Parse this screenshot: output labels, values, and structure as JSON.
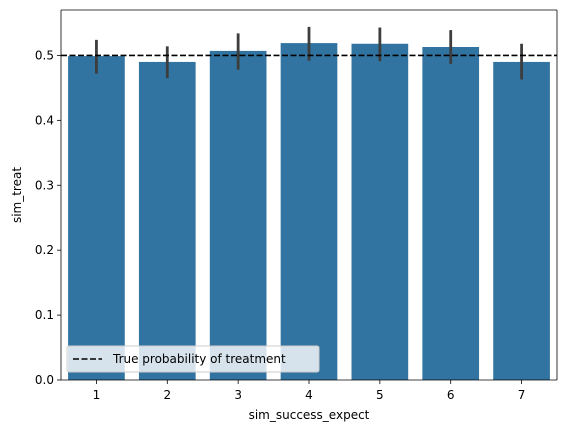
{
  "chart_data": {
    "type": "bar",
    "categories": [
      "1",
      "2",
      "3",
      "4",
      "5",
      "6",
      "7"
    ],
    "values": [
      0.499,
      0.49,
      0.507,
      0.519,
      0.518,
      0.513,
      0.49
    ],
    "error_bars": [
      [
        0.472,
        0.524
      ],
      [
        0.465,
        0.514
      ],
      [
        0.478,
        0.534
      ],
      [
        0.492,
        0.544
      ],
      [
        0.491,
        0.543
      ],
      [
        0.487,
        0.539
      ],
      [
        0.463,
        0.518
      ]
    ],
    "xlabel": "sim_success_expect",
    "ylabel": "sim_treat",
    "ylim": [
      0,
      0.57
    ],
    "yticks": [
      0.0,
      0.1,
      0.2,
      0.3,
      0.4,
      0.5
    ],
    "ytick_labels": [
      "0.0",
      "0.1",
      "0.2",
      "0.3",
      "0.4",
      "0.5"
    ],
    "reference_line": {
      "y": 0.5,
      "style": "dashed",
      "color": "#000000",
      "label": "True probability of treatment"
    },
    "legend": {
      "placement": "lower-left",
      "entries": [
        "True probability of treatment"
      ]
    },
    "bar_color": "#3274a1",
    "errorbar_color": "#3d3d3d",
    "grid": false
  }
}
